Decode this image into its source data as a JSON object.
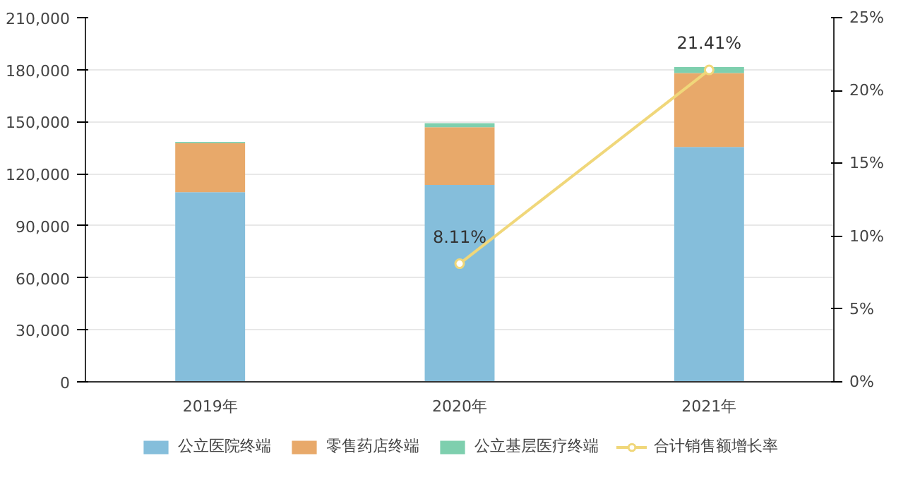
{
  "chart_data": {
    "type": "bar",
    "stacked": true,
    "categories": [
      "2019年",
      "2020年",
      "2021年"
    ],
    "series": [
      {
        "name": "公立医院终端",
        "color": "#85bedb",
        "values": [
          109400,
          113500,
          135400
        ]
      },
      {
        "name": "零售药店终端",
        "color": "#e8a96a",
        "values": [
          28300,
          33300,
          42700
        ]
      },
      {
        "name": "公立基层医疗终端",
        "color": "#7ecfae",
        "values": [
          700,
          2400,
          3400
        ]
      },
      {
        "name": "合计销售额增长率",
        "type": "line",
        "axis": "y2",
        "color": "#f0d77a",
        "marker": "circle",
        "values": [
          null,
          8.11,
          21.41
        ],
        "value_labels": [
          null,
          "8.11%",
          "21.41%"
        ]
      }
    ],
    "ylim": [
      0,
      210000
    ],
    "yticks": [
      {
        "value": 0,
        "label": "0"
      },
      {
        "value": 30000,
        "label": "30,000"
      },
      {
        "value": 60000,
        "label": "60,000"
      },
      {
        "value": 90000,
        "label": "90,000"
      },
      {
        "value": 120000,
        "label": "120,000"
      },
      {
        "value": 150000,
        "label": "150,000"
      },
      {
        "value": 180000,
        "label": "180,000"
      },
      {
        "value": 210000,
        "label": "210,000"
      }
    ],
    "y2lim": [
      0,
      25
    ],
    "y2ticks": [
      {
        "value": 0,
        "label": "0%"
      },
      {
        "value": 5,
        "label": "5%"
      },
      {
        "value": 10,
        "label": "10%"
      },
      {
        "value": 15,
        "label": "15%"
      },
      {
        "value": 20,
        "label": "20%"
      },
      {
        "value": 25,
        "label": "25%"
      }
    ],
    "grid": "y",
    "legend": "bottom"
  }
}
